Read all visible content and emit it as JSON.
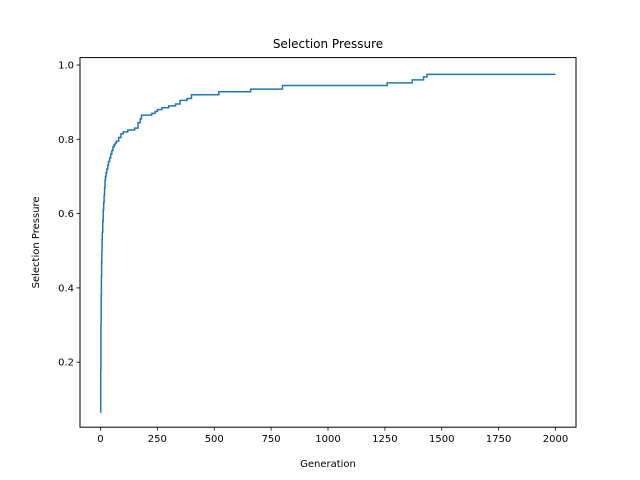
{
  "chart_data": {
    "type": "line",
    "title": "Selection Pressure",
    "xlabel": "Generation",
    "ylabel": "Selection Pressure",
    "xlim": [
      -90,
      2090
    ],
    "ylim": [
      0.025,
      1.02
    ],
    "grid": false,
    "line_style": "step",
    "colors": {
      "series": "#1f77b4"
    },
    "x_ticks": [
      {
        "value": 0,
        "label": "0"
      },
      {
        "value": 250,
        "label": "250"
      },
      {
        "value": 500,
        "label": "500"
      },
      {
        "value": 750,
        "label": "750"
      },
      {
        "value": 1000,
        "label": "1000"
      },
      {
        "value": 1250,
        "label": "1250"
      },
      {
        "value": 1500,
        "label": "1500"
      },
      {
        "value": 1750,
        "label": "1750"
      },
      {
        "value": 2000,
        "label": "2000"
      }
    ],
    "y_ticks": [
      {
        "value": 0.2,
        "label": "0.2"
      },
      {
        "value": 0.4,
        "label": "0.4"
      },
      {
        "value": 0.6,
        "label": "0.6"
      },
      {
        "value": 0.8,
        "label": "0.8"
      },
      {
        "value": 1.0,
        "label": "1.0"
      }
    ],
    "series": [
      {
        "x": [
          0,
          1,
          2,
          3,
          4,
          5,
          6,
          7,
          8,
          10,
          12,
          14,
          16,
          18,
          20,
          22,
          25,
          28,
          32,
          35,
          40,
          45,
          50,
          55,
          60,
          65,
          70,
          80,
          90,
          100,
          110,
          120,
          135,
          150,
          165,
          175,
          180,
          200,
          225,
          240,
          250,
          270,
          300,
          330,
          350,
          380,
          400,
          450,
          500,
          520,
          600,
          660,
          700,
          750,
          800,
          850,
          900,
          1000,
          1100,
          1200,
          1260,
          1300,
          1350,
          1370,
          1400,
          1420,
          1435,
          1450,
          1500,
          1600,
          1700,
          1800,
          1900,
          2000
        ],
        "y": [
          0.065,
          0.18,
          0.3,
          0.38,
          0.43,
          0.47,
          0.5,
          0.53,
          0.55,
          0.58,
          0.61,
          0.63,
          0.65,
          0.67,
          0.69,
          0.7,
          0.71,
          0.72,
          0.73,
          0.74,
          0.75,
          0.76,
          0.77,
          0.78,
          0.785,
          0.79,
          0.795,
          0.805,
          0.815,
          0.82,
          0.82,
          0.825,
          0.825,
          0.83,
          0.845,
          0.855,
          0.865,
          0.865,
          0.87,
          0.875,
          0.88,
          0.885,
          0.89,
          0.895,
          0.905,
          0.91,
          0.92,
          0.92,
          0.92,
          0.928,
          0.928,
          0.935,
          0.935,
          0.935,
          0.945,
          0.945,
          0.945,
          0.945,
          0.945,
          0.945,
          0.952,
          0.952,
          0.952,
          0.96,
          0.96,
          0.968,
          0.975,
          0.975,
          0.975,
          0.975,
          0.975,
          0.975,
          0.975,
          0.975
        ]
      }
    ]
  }
}
